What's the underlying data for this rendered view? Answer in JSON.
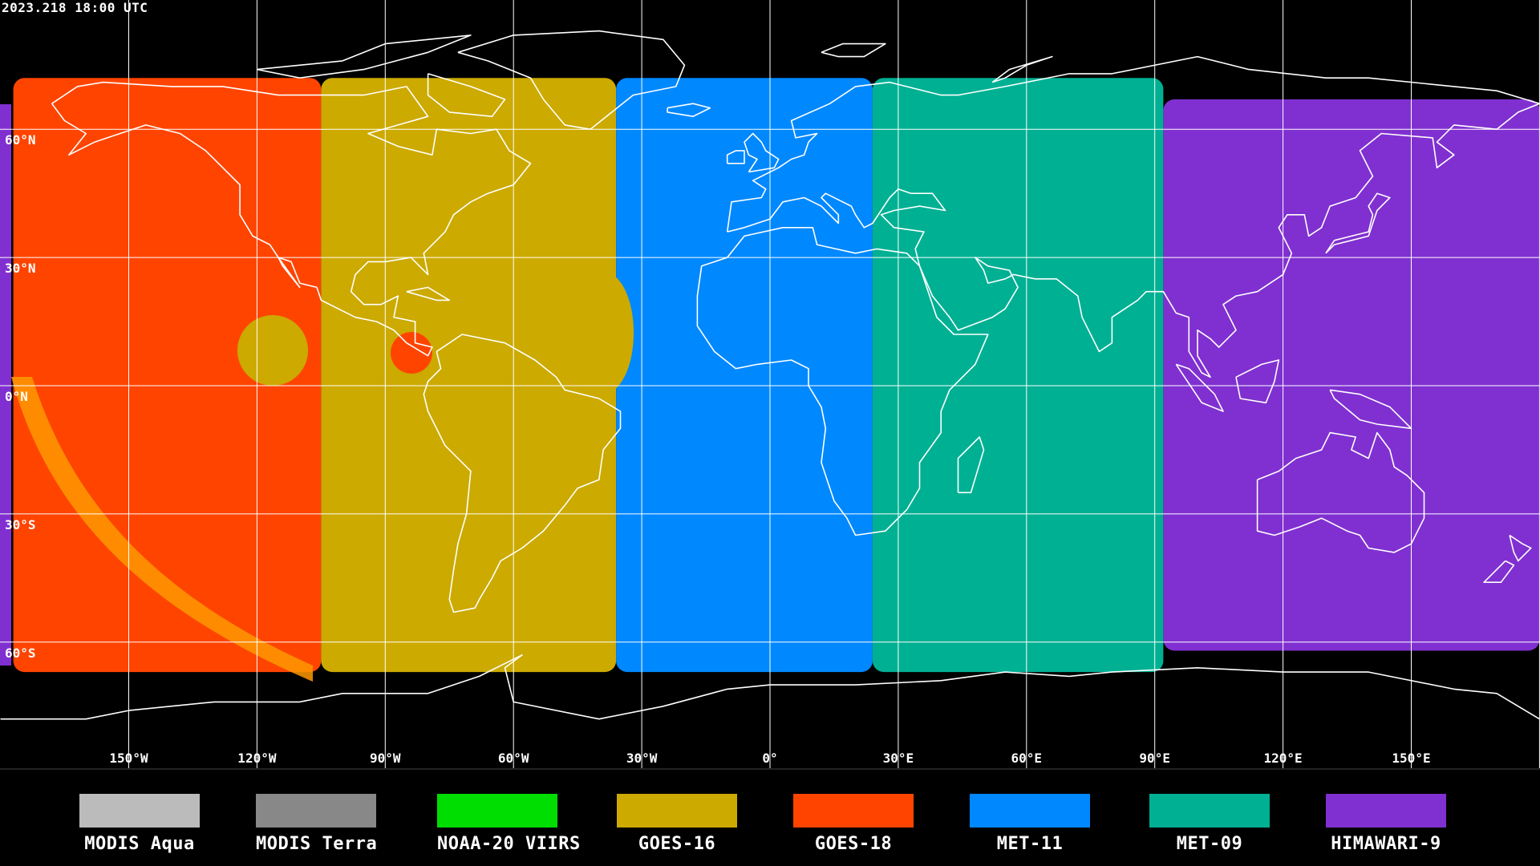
{
  "timestamp": "2023.218 18:00 UTC",
  "latitude_labels": [
    "60°N",
    "30°N",
    "0°N",
    "30°S",
    "60°S"
  ],
  "longitude_labels": [
    "150°W",
    "120°W",
    "90°W",
    "60°W",
    "30°W",
    "0°",
    "30°E",
    "60°E",
    "90°E",
    "120°E",
    "150°E"
  ],
  "map": {
    "projection": "equirectangular",
    "lon_range": [
      -180,
      180
    ],
    "lat_range": [
      -90,
      90
    ],
    "grid_spacing_deg": 30,
    "background": "#000000",
    "coastline_color": "#ffffff",
    "grid_color": "#ffffff",
    "coverage": [
      {
        "satellite": "GOES-18",
        "lon_min": -177,
        "lon_max": -105,
        "lat_min": -67,
        "lat_max": 72
      },
      {
        "satellite": "GOES-16",
        "lon_min": -105,
        "lon_max": -36,
        "lat_min": -67,
        "lat_max": 72
      },
      {
        "satellite": "MET-11",
        "lon_min": -36,
        "lon_max": 24,
        "lat_min": -67,
        "lat_max": 72
      },
      {
        "satellite": "MET-09",
        "lon_min": 24,
        "lon_max": 92,
        "lat_min": -67,
        "lat_max": 72
      },
      {
        "satellite": "HIMAWARI-9",
        "lon_min": 92,
        "lon_max": 180,
        "lat_min": -62,
        "lat_max": 67
      }
    ]
  },
  "legend": [
    {
      "label": "MODIS Aqua",
      "color": "#bbbbbb"
    },
    {
      "label": "MODIS Terra",
      "color": "#888888"
    },
    {
      "label": "NOAA-20 VIIRS",
      "color": "#00dd00"
    },
    {
      "label": "GOES-16",
      "color": "#ccaa00"
    },
    {
      "label": "GOES-18",
      "color": "#ff4400"
    },
    {
      "label": "MET-11",
      "color": "#0088ff"
    },
    {
      "label": "MET-09",
      "color": "#00b093"
    },
    {
      "label": "HIMAWARI-9",
      "color": "#8030d0"
    }
  ]
}
